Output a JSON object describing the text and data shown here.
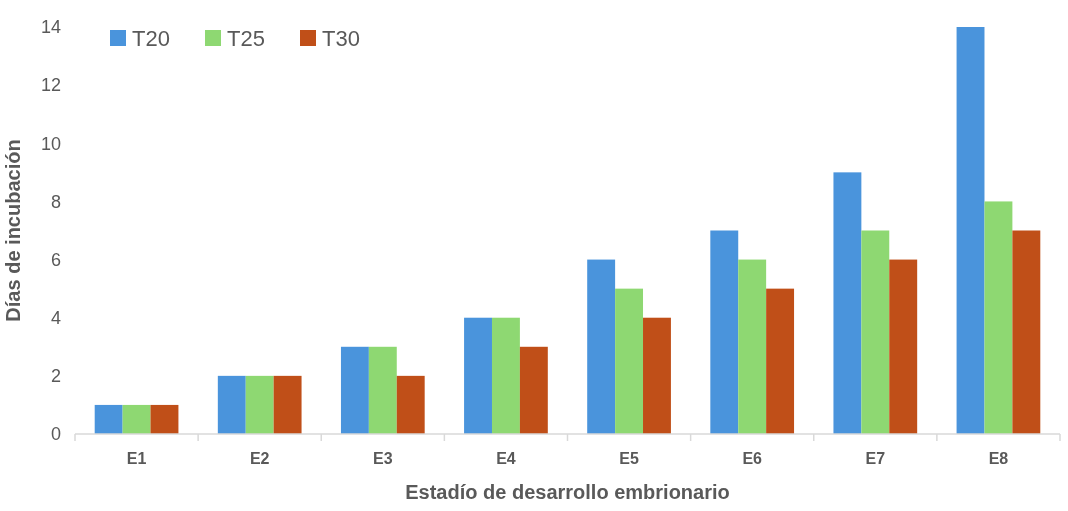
{
  "chart_data": {
    "type": "bar",
    "xlabel": "Estadío de desarrollo embrionario",
    "ylabel": "Días de incubación",
    "categories": [
      "E1",
      "E2",
      "E3",
      "E4",
      "E5",
      "E6",
      "E7",
      "E8"
    ],
    "series": [
      {
        "name": "T20",
        "color": "#4a94dc",
        "values": [
          1,
          2,
          3,
          4,
          6,
          7,
          9,
          14
        ]
      },
      {
        "name": "T25",
        "color": "#8ed872",
        "values": [
          1,
          2,
          3,
          4,
          5,
          6,
          7,
          8
        ]
      },
      {
        "name": "T30",
        "color": "#c04f18",
        "values": [
          1,
          2,
          2,
          3,
          4,
          5,
          6,
          7
        ]
      }
    ],
    "ylim": [
      0,
      14
    ],
    "yticks": [
      0,
      2,
      4,
      6,
      8,
      10,
      12,
      14
    ],
    "grid": false,
    "legend": "top left"
  }
}
